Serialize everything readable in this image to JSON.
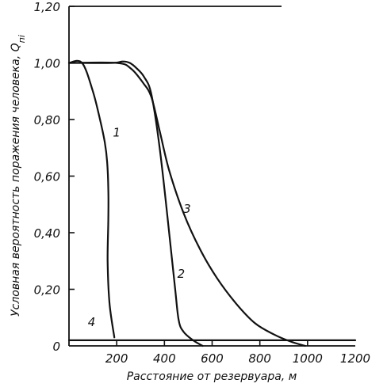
{
  "chart_data": {
    "type": "line",
    "xlabel": "Расстояние от резервуара, м",
    "ylabel": "Условная вероятность поражения человека, Q",
    "ylabel_subscript": "пi",
    "xlim": [
      0,
      1200
    ],
    "ylim": [
      0,
      1.2
    ],
    "x_tick_values": [
      200,
      400,
      600,
      800,
      1000,
      1200
    ],
    "x_tick_labels": [
      "200",
      "400",
      "600",
      "800",
      "1000",
      "1200"
    ],
    "y_tick_values": [
      0,
      0.2,
      0.4,
      0.6,
      0.8,
      1.0,
      1.2
    ],
    "y_tick_labels": [
      "0",
      "0,20",
      "0,40",
      "0,60",
      "0,80",
      "1,00",
      "1,20"
    ],
    "grid": false,
    "series": [
      {
        "name": "1",
        "x": [
          0,
          55,
          100,
          130,
          150,
          160,
          165,
          165,
          162,
          170,
          190
        ],
        "y": [
          1.0,
          1.0,
          0.9,
          0.8,
          0.72,
          0.65,
          0.55,
          0.45,
          0.3,
          0.15,
          0.03
        ]
      },
      {
        "name": "2",
        "x": [
          0,
          180,
          225,
          255,
          285,
          315,
          345,
          380,
          420,
          445,
          460,
          480,
          520,
          560
        ],
        "y": [
          1.0,
          1.0,
          1.005,
          1.0,
          0.98,
          0.95,
          0.89,
          0.7,
          0.4,
          0.2,
          0.09,
          0.05,
          0.02,
          0.0
        ]
      },
      {
        "name": "3",
        "x": [
          0,
          200,
          260,
          310,
          345,
          380,
          420,
          480,
          550,
          620,
          700,
          780,
          860,
          930,
          990
        ],
        "y": [
          1.0,
          1.0,
          0.98,
          0.93,
          0.88,
          0.76,
          0.62,
          0.47,
          0.34,
          0.24,
          0.15,
          0.08,
          0.04,
          0.015,
          0.0
        ]
      },
      {
        "name": "4",
        "x": [
          0,
          1200
        ],
        "y": [
          0.02,
          0.02
        ]
      }
    ],
    "curve_labels": [
      {
        "text": "1",
        "x": 200,
        "y": 0.74
      },
      {
        "text": "2",
        "x": 470,
        "y": 0.24
      },
      {
        "text": "3",
        "x": 495,
        "y": 0.47
      },
      {
        "text": "4",
        "x": 95,
        "y": 0.07
      }
    ]
  }
}
